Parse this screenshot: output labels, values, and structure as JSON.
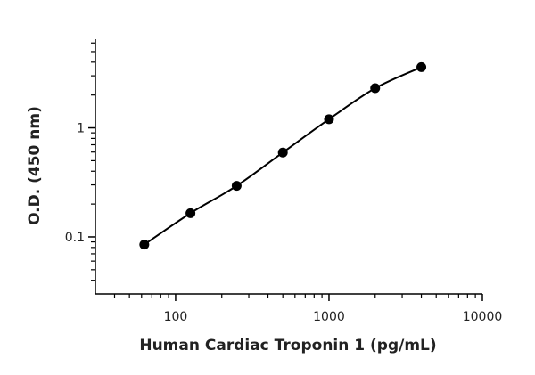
{
  "chart_data": {
    "type": "scatter",
    "xlabel": "Human Cardiac Troponin 1 (pg/mL)",
    "ylabel": "O.D. (450 nm)",
    "xscale": "log",
    "yscale": "log",
    "x": [
      62.5,
      125,
      250,
      500,
      1000,
      2000,
      4000
    ],
    "series": [
      {
        "values": [
          0.085,
          0.165,
          0.294,
          0.594,
          1.2,
          2.31,
          3.6
        ],
        "color": "#000000"
      }
    ],
    "fit_line": true,
    "xlim": [
      30,
      10000
    ],
    "ylim": [
      0.03,
      6.5
    ],
    "xticks": [
      100,
      1000,
      10000
    ],
    "yticks": [
      0.1,
      1
    ],
    "xminorticks": [
      40,
      50,
      60,
      70,
      80,
      90,
      200,
      300,
      400,
      500,
      600,
      700,
      800,
      900,
      2000,
      3000,
      4000,
      5000,
      6000,
      7000,
      8000,
      9000
    ],
    "yminorticks": [
      0.04,
      0.05,
      0.06,
      0.07,
      0.08,
      0.09,
      0.2,
      0.3,
      0.4,
      0.5,
      0.6,
      0.7,
      0.8,
      0.9,
      2,
      3,
      4,
      5,
      6
    ]
  }
}
